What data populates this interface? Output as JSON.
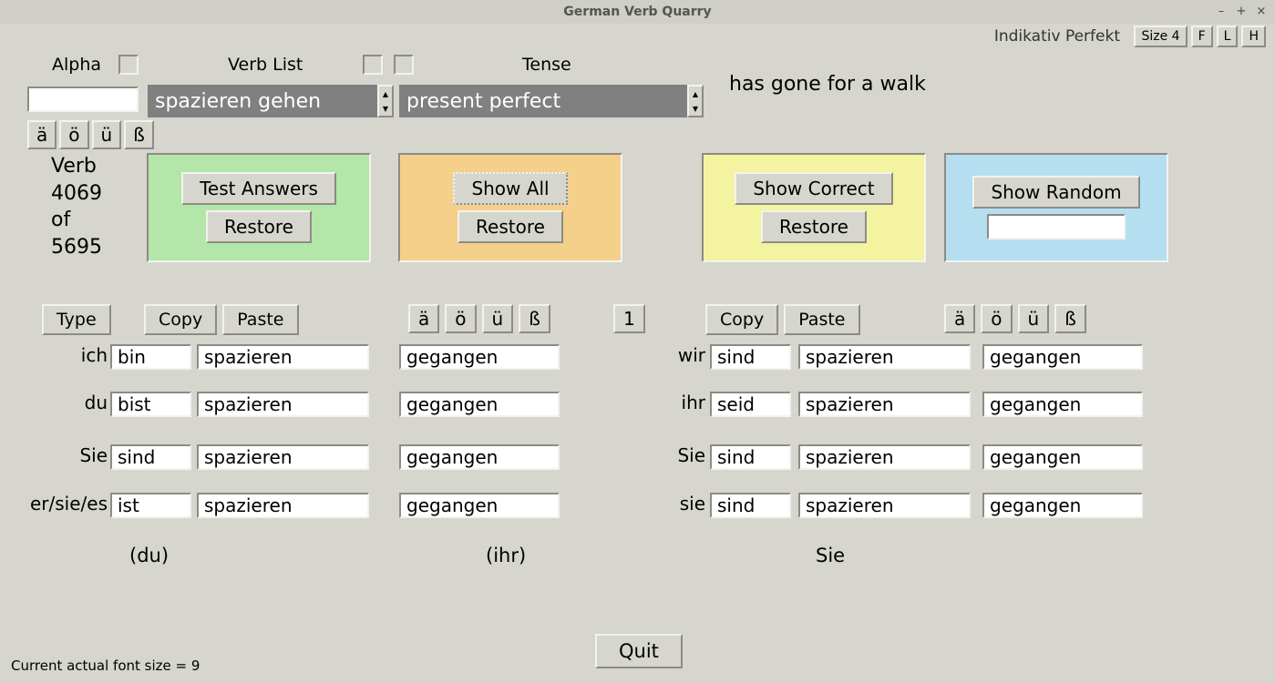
{
  "window": {
    "title": "German Verb Quarry"
  },
  "header": {
    "tense_name": "Indikativ Perfekt",
    "size_btn": "Size 4",
    "f_btn": "F",
    "l_btn": "L",
    "h_btn": "H"
  },
  "labels": {
    "alpha": "Alpha",
    "verb_list": "Verb List",
    "tense": "Tense"
  },
  "translation": "has gone for a walk",
  "verb_combo": "spazieren gehen",
  "tense_combo": "present perfect",
  "umlaut": {
    "a": "ä",
    "o": "ö",
    "u": "ü",
    "ss": "ß"
  },
  "verb_count": {
    "word": "Verb",
    "current": "4069",
    "of": "of",
    "total": "5695"
  },
  "panels": {
    "green": {
      "bg": "#b3e6a8",
      "btn1": "Test Answers",
      "btn2": "Restore"
    },
    "orange": {
      "bg": "#f5d08a",
      "btn1": "Show All",
      "btn2": "Restore"
    },
    "yellow": {
      "bg": "#f3f3a0",
      "btn1": "Show Correct",
      "btn2": "Restore"
    },
    "blue": {
      "bg": "#b5dff0",
      "btn1": "Show Random"
    }
  },
  "controls": {
    "type": "Type",
    "copy": "Copy",
    "paste": "Paste",
    "one": "1"
  },
  "pronouns_left": [
    "ich",
    "du",
    "Sie",
    "er/sie/es"
  ],
  "pronouns_right": [
    "wir",
    "ihr",
    "Sie",
    "sie"
  ],
  "aux_left": [
    "bin",
    "bist",
    "sind",
    "ist"
  ],
  "aux_right": [
    "sind",
    "seid",
    "sind",
    "sind"
  ],
  "mid": "spazieren",
  "part": "gegangen",
  "forms": {
    "du": "(du)",
    "ihr": "(ihr)",
    "sie": "Sie"
  },
  "quit": "Quit",
  "footer": "Current actual font size = 9",
  "colors": {
    "page_bg": "#d6d6ce",
    "combo_bg": "#808080",
    "green": "#b3e6a8",
    "orange": "#f5d08a",
    "yellow": "#f3f3a0",
    "blue": "#b5dff0"
  }
}
